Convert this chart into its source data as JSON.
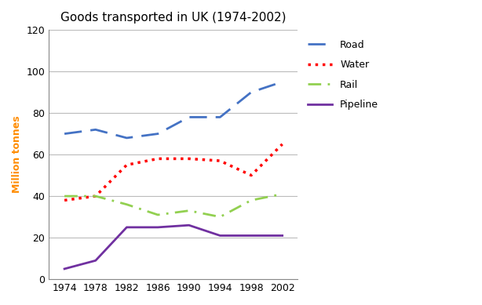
{
  "title": "Goods transported in UK (1974-2002)",
  "ylabel": "Million tonnes",
  "years": [
    1974,
    1978,
    1982,
    1986,
    1990,
    1994,
    1998,
    2002
  ],
  "road": [
    70,
    72,
    68,
    70,
    78,
    78,
    90,
    95
  ],
  "water": [
    38,
    40,
    55,
    58,
    58,
    57,
    50,
    65
  ],
  "rail": [
    40,
    40,
    36,
    31,
    33,
    30,
    38,
    41
  ],
  "pipeline": [
    5,
    9,
    25,
    25,
    26,
    21,
    21,
    21
  ],
  "ylim": [
    0,
    120
  ],
  "yticks": [
    0,
    20,
    40,
    60,
    80,
    100,
    120
  ],
  "road_color": "#4472C4",
  "water_color": "#FF0000",
  "rail_color": "#92D050",
  "pipeline_color": "#7030A0",
  "ylabel_color": "#FF8C00",
  "bg_color": "#FFFFFF",
  "grid_color": "#BBBBBB",
  "title_fontsize": 11,
  "axis_label_fontsize": 9,
  "tick_fontsize": 9,
  "legend_fontsize": 9
}
